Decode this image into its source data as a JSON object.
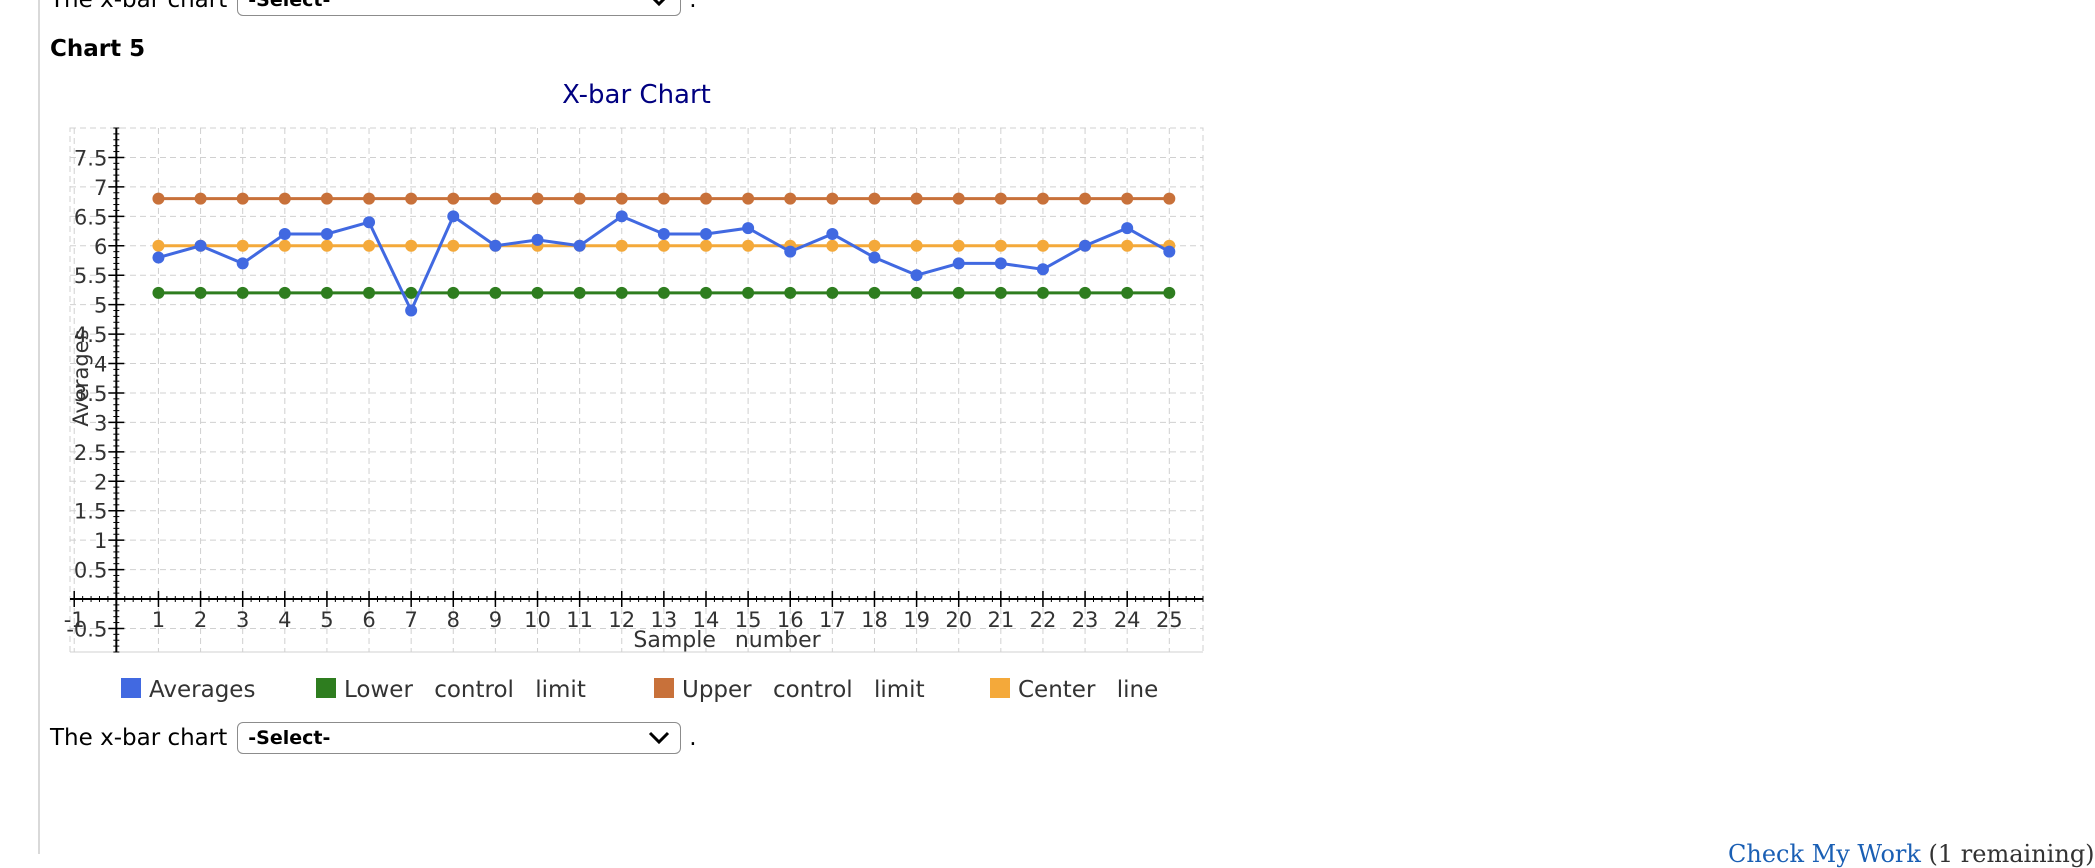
{
  "top_prompt": {
    "text": "The x-bar chart",
    "select_value": "-Select-",
    "suffix": "."
  },
  "chart_heading": "Chart 5",
  "bottom_prompt": {
    "text": "The x-bar chart",
    "select_value": "-Select-",
    "suffix": "."
  },
  "footer": {
    "link": "Check My Work",
    "note": "(1 remaining)"
  },
  "chart_data": {
    "type": "line",
    "title": "X-bar Chart",
    "xlabel": "Sample number",
    "ylabel": "Averages",
    "x": [
      1,
      2,
      3,
      4,
      5,
      6,
      7,
      8,
      9,
      10,
      11,
      12,
      13,
      14,
      15,
      16,
      17,
      18,
      19,
      20,
      21,
      22,
      23,
      24,
      25
    ],
    "xlim": [
      -1.1,
      25.8
    ],
    "ylim": [
      -0.9,
      8.0
    ],
    "yticks": [
      -0.5,
      0.5,
      1,
      1.5,
      2,
      2.5,
      3,
      3.5,
      4,
      4.5,
      5,
      5.5,
      6,
      6.5,
      7,
      7.5
    ],
    "ytick_labels": [
      "-0.5",
      "0.5",
      "1",
      "1.5",
      "2",
      "2.5",
      "3",
      "3.5",
      "4",
      "4.5",
      "5",
      "5.5",
      "6",
      "6.5",
      "7",
      "7.5"
    ],
    "xticks": [
      -1,
      1,
      2,
      3,
      4,
      5,
      6,
      7,
      8,
      9,
      10,
      11,
      12,
      13,
      14,
      15,
      16,
      17,
      18,
      19,
      20,
      21,
      22,
      23,
      24,
      25
    ],
    "xtick_labels": [
      "-1",
      "1",
      "2",
      "3",
      "4",
      "5",
      "6",
      "7",
      "8",
      "9",
      "10",
      "11",
      "12",
      "13",
      "14",
      "15",
      "16",
      "17",
      "18",
      "19",
      "20",
      "21",
      "22",
      "23",
      "24",
      "25"
    ],
    "grid": true,
    "legend_position": "bottom",
    "series": [
      {
        "name": "Averages",
        "color": "#4169e1",
        "values": [
          5.8,
          6.0,
          5.7,
          6.2,
          6.2,
          6.4,
          4.9,
          6.5,
          6.0,
          6.1,
          6.0,
          6.5,
          6.2,
          6.2,
          6.3,
          5.9,
          6.2,
          5.8,
          5.5,
          5.7,
          5.7,
          5.6,
          6.0,
          6.3,
          5.9
        ]
      },
      {
        "name": "Lower control limit",
        "color": "#2e7d1f",
        "values": [
          5.2,
          5.2,
          5.2,
          5.2,
          5.2,
          5.2,
          5.2,
          5.2,
          5.2,
          5.2,
          5.2,
          5.2,
          5.2,
          5.2,
          5.2,
          5.2,
          5.2,
          5.2,
          5.2,
          5.2,
          5.2,
          5.2,
          5.2,
          5.2,
          5.2
        ]
      },
      {
        "name": "Upper control limit",
        "color": "#c8713a",
        "values": [
          6.8,
          6.8,
          6.8,
          6.8,
          6.8,
          6.8,
          6.8,
          6.8,
          6.8,
          6.8,
          6.8,
          6.8,
          6.8,
          6.8,
          6.8,
          6.8,
          6.8,
          6.8,
          6.8,
          6.8,
          6.8,
          6.8,
          6.8,
          6.8,
          6.8
        ]
      },
      {
        "name": "Center line",
        "color": "#f4a93a",
        "values": [
          6.0,
          6.0,
          6.0,
          6.0,
          6.0,
          6.0,
          6.0,
          6.0,
          6.0,
          6.0,
          6.0,
          6.0,
          6.0,
          6.0,
          6.0,
          6.0,
          6.0,
          6.0,
          6.0,
          6.0,
          6.0,
          6.0,
          6.0,
          6.0,
          6.0
        ]
      }
    ]
  }
}
